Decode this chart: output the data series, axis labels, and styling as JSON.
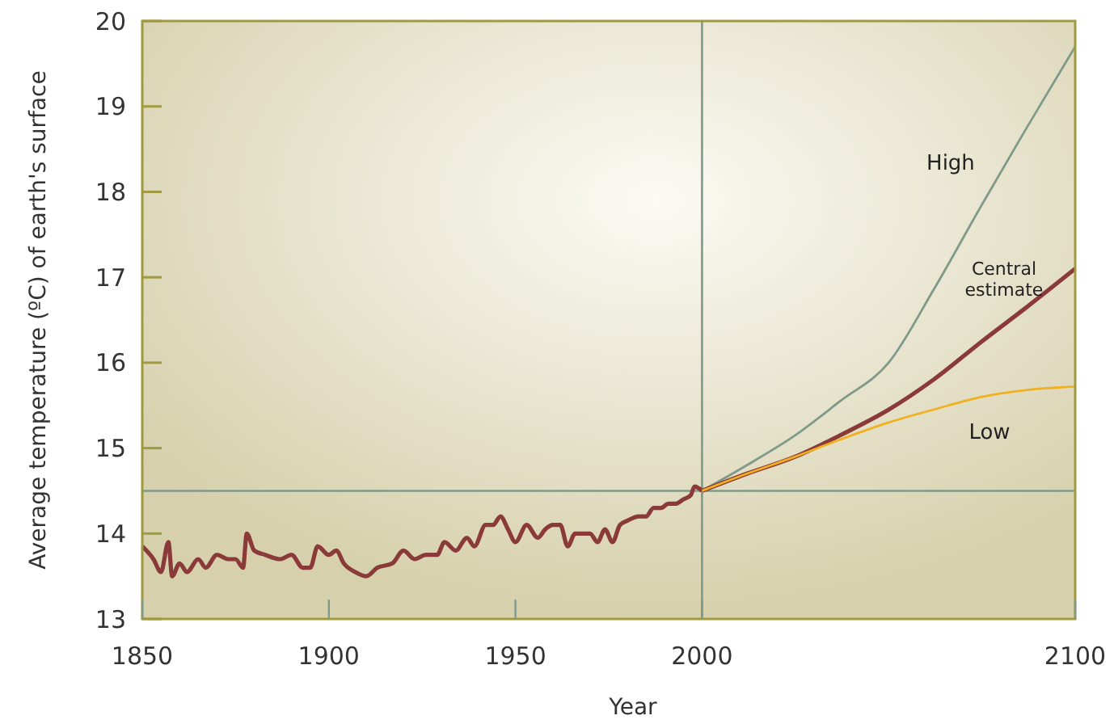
{
  "chart_data": {
    "type": "line",
    "xlabel": "Year",
    "ylabel": "Average temperature (ºC) of earth's surface",
    "xlim": [
      1850,
      2100
    ],
    "xticks": [
      1850,
      1900,
      1950,
      2000,
      2100
    ],
    "ylim": [
      13,
      20
    ],
    "yticks": [
      13,
      14,
      15,
      16,
      17,
      18,
      19,
      20
    ],
    "grid": false,
    "marker": "none",
    "line_style": "solid",
    "ref_lines": [
      {
        "axis": "y",
        "value": 14.5,
        "color": "#7f9a8a"
      },
      {
        "axis": "x",
        "value": 2000,
        "color": "#7f9a8a"
      }
    ],
    "series": [
      {
        "color": "#8b3a3a",
        "x": [
          1850,
          1853,
          1855,
          1857,
          1858,
          1860,
          1862,
          1865,
          1867,
          1870,
          1873,
          1875,
          1877,
          1878,
          1880,
          1883,
          1887,
          1890,
          1893,
          1895,
          1897,
          1900,
          1902,
          1904,
          1907,
          1910,
          1913,
          1917,
          1920,
          1923,
          1926,
          1929,
          1931,
          1934,
          1937,
          1939,
          1942,
          1944,
          1946,
          1948,
          1950,
          1953,
          1956,
          1958,
          1960,
          1962,
          1964,
          1966,
          1968,
          1970,
          1972,
          1974,
          1976,
          1978,
          1980,
          1983,
          1985,
          1987,
          1989,
          1991,
          1993,
          1995,
          1997,
          1998,
          2000
        ],
        "values": [
          13.85,
          13.7,
          13.55,
          13.9,
          13.5,
          13.65,
          13.55,
          13.7,
          13.6,
          13.75,
          13.7,
          13.7,
          13.6,
          14.0,
          13.8,
          13.75,
          13.7,
          13.75,
          13.6,
          13.6,
          13.85,
          13.75,
          13.8,
          13.65,
          13.55,
          13.5,
          13.6,
          13.65,
          13.8,
          13.7,
          13.75,
          13.75,
          13.9,
          13.8,
          13.95,
          13.85,
          14.1,
          14.1,
          14.2,
          14.05,
          13.9,
          14.1,
          13.95,
          14.05,
          14.1,
          14.1,
          13.85,
          14.0,
          14.0,
          14.0,
          13.9,
          14.05,
          13.9,
          14.1,
          14.15,
          14.2,
          14.2,
          14.3,
          14.3,
          14.35,
          14.35,
          14.4,
          14.45,
          14.55,
          14.5
        ]
      },
      {
        "name": "High",
        "color": "#7f9a8a",
        "x": [
          2000,
          2012,
          2025,
          2037,
          2050,
          2062,
          2075,
          2087,
          2100
        ],
        "values": [
          14.5,
          14.8,
          15.15,
          15.55,
          16.0,
          16.85,
          17.85,
          18.75,
          19.7
        ]
      },
      {
        "name": "Central estimate",
        "color": "#8b3a3a",
        "x": [
          2000,
          2012,
          2025,
          2037,
          2050,
          2062,
          2075,
          2087,
          2100
        ],
        "values": [
          14.5,
          14.7,
          14.9,
          15.15,
          15.45,
          15.8,
          16.25,
          16.65,
          17.1
        ]
      },
      {
        "name": "Low",
        "color": "#f0b020",
        "x": [
          2000,
          2012,
          2025,
          2037,
          2050,
          2062,
          2075,
          2087,
          2100
        ],
        "values": [
          14.5,
          14.7,
          14.9,
          15.1,
          15.3,
          15.45,
          15.6,
          15.68,
          15.72
        ]
      }
    ]
  }
}
